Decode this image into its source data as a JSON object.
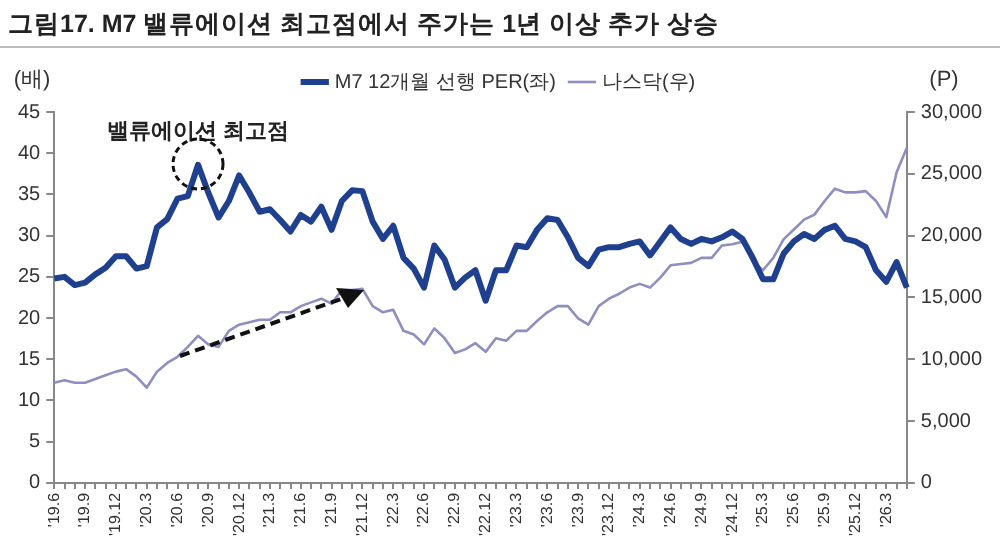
{
  "chart_data": {
    "type": "line",
    "title": "그림17. M7 밸류에이션 최고점에서 주가는 1년 이상 추가 상승",
    "ylabel": "(배)",
    "y2label": "(P)",
    "categories": [
      "'19.6",
      null,
      null,
      "'19.9",
      null,
      null,
      "'19.12",
      null,
      null,
      "'20.3",
      null,
      null,
      "'20.6",
      null,
      null,
      "'20.9",
      null,
      null,
      "'20.12",
      null,
      null,
      "'21.3",
      null,
      null,
      "'21.6",
      null,
      null,
      "'21.9",
      null,
      null,
      "'21.12",
      null,
      null,
      "'22.3",
      null,
      null,
      "'22.6",
      null,
      null,
      "'22.9",
      null,
      null,
      "'22.12",
      null,
      null,
      "'23.3",
      null,
      null,
      "'23.6",
      null,
      null,
      "'23.9",
      null,
      null,
      "'23.12",
      null,
      null,
      "'24.3",
      null,
      null,
      "'24.6",
      null,
      null,
      "'24.9",
      null,
      null,
      "'24.12",
      null,
      null,
      "'25.3",
      null,
      null,
      "'25.6",
      null,
      null,
      "'25.9",
      null,
      null,
      "'25.12",
      null,
      null,
      "'26.3",
      null,
      null
    ],
    "series": [
      {
        "name": "M7 12개월 선행 PER(좌)",
        "color": "#1f3f8f",
        "values": [
          24.8,
          25,
          24,
          24.3,
          25.3,
          26.1,
          27.5,
          27.5,
          26,
          26.3,
          31,
          32,
          34.5,
          34.8,
          38.6,
          35.2,
          32.2,
          34.2,
          37.3,
          35.2,
          32.9,
          33.2,
          31.9,
          30.5,
          32.5,
          31.7,
          33.5,
          30.7,
          34.2,
          35.5,
          35.4,
          31.7,
          29.6,
          31.2,
          27.3,
          26,
          23.7,
          28.8,
          27.1,
          23.7,
          24.9,
          25.8,
          22.1,
          25.8,
          25.8,
          28.8,
          28.6,
          30.7,
          32.1,
          31.9,
          29.8,
          27.3,
          26.3,
          28.3,
          28.6,
          28.6,
          29,
          29.3,
          27.6,
          29.3,
          31,
          29.6,
          29,
          29.6,
          29.3,
          29.8,
          30.5,
          29.6,
          27.3,
          24.7,
          24.7,
          27.8,
          29.3,
          30.2,
          29.6,
          30.7,
          31.2,
          29.6,
          29.3,
          28.6,
          25.8,
          24.4,
          26.8,
          23.7
        ]
      },
      {
        "name": "나스닥(우)",
        "color": "#8e8fc0",
        "axis": "y2",
        "values": [
          8100,
          8300,
          8100,
          8100,
          8400,
          8700,
          9000,
          9200,
          8600,
          7700,
          9000,
          9700,
          10200,
          11000,
          11900,
          11200,
          11000,
          12300,
          12800,
          13000,
          13200,
          13200,
          13800,
          13800,
          14300,
          14600,
          14900,
          14500,
          15600,
          15600,
          15700,
          14300,
          13800,
          14000,
          12300,
          12000,
          11200,
          12500,
          11700,
          10500,
          10800,
          11300,
          10600,
          11700,
          11500,
          12300,
          12300,
          13100,
          13800,
          14300,
          14300,
          13300,
          12800,
          14300,
          14900,
          15300,
          15800,
          16100,
          15800,
          16600,
          17600,
          17700,
          17800,
          18200,
          18200,
          19200,
          19300,
          19500,
          17900,
          17200,
          18200,
          19700,
          20500,
          21300,
          21700,
          22800,
          23800,
          23500,
          23500,
          23600,
          22800,
          21500,
          25100,
          27100
        ]
      }
    ],
    "ylim": [
      0,
      45
    ],
    "yticks": [
      0,
      5,
      10,
      15,
      20,
      25,
      30,
      35,
      40,
      45
    ],
    "y2lim": [
      0,
      30000
    ],
    "y2ticks": [
      0,
      {
        "value": 5000,
        "label": "5,000"
      },
      {
        "value": 10000,
        "label": "10,000"
      },
      {
        "value": 15000,
        "label": "15,000"
      },
      {
        "value": 20000,
        "label": "20,000"
      },
      {
        "value": 25000,
        "label": "25,000"
      },
      {
        "value": 30000,
        "label": "30,000"
      }
    ],
    "grid": false,
    "legend": "top",
    "marker": "none",
    "annotations": [
      "밸류에이션 최고점"
    ]
  }
}
